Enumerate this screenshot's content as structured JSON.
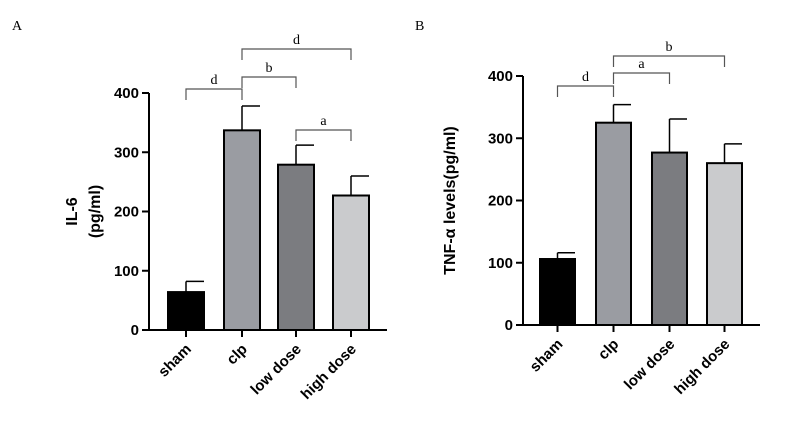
{
  "chart_data": [
    {
      "type": "bar",
      "panel_label": "A",
      "title": "",
      "ylabel_lines": [
        "IL-6",
        "(pg/ml)"
      ],
      "xlabel": "",
      "categories": [
        "sham",
        "clp",
        "low dose",
        "high dose"
      ],
      "values": [
        64,
        337,
        279,
        227
      ],
      "error_upper": [
        82,
        378,
        312,
        260
      ],
      "colors": [
        "#000000",
        "#9a9ca2",
        "#7b7c80",
        "#cacbcd"
      ],
      "ylim": [
        0,
        400
      ],
      "yticks": [
        "0",
        "100",
        "200",
        "300",
        "400"
      ],
      "grid": false,
      "significance": [
        {
          "from": 0,
          "to": 1,
          "label": "d",
          "level": 0
        },
        {
          "from": 1,
          "to": 2,
          "label": "b",
          "level": 1
        },
        {
          "from": 1,
          "to": 3,
          "label": "d",
          "level": 2
        },
        {
          "from": 2,
          "to": 3,
          "label": "a",
          "level": -1
        }
      ]
    },
    {
      "type": "bar",
      "panel_label": "B",
      "title": "",
      "ylabel_lines": [
        "TNF-α levels(pg/ml)"
      ],
      "xlabel": "",
      "categories": [
        "sham",
        "clp",
        "low dose",
        "high dose"
      ],
      "values": [
        106,
        325,
        277,
        260
      ],
      "error_upper": [
        116,
        354,
        331,
        291
      ],
      "colors": [
        "#000000",
        "#9a9ca2",
        "#7b7c80",
        "#cacbcd"
      ],
      "ylim": [
        0,
        400
      ],
      "yticks": [
        "0",
        "100",
        "200",
        "300",
        "400"
      ],
      "grid": false,
      "significance": [
        {
          "from": 0,
          "to": 1,
          "label": "d",
          "level": 0
        },
        {
          "from": 1,
          "to": 2,
          "label": "a",
          "level": 1
        },
        {
          "from": 1,
          "to": 3,
          "label": "b",
          "level": 2
        }
      ]
    }
  ]
}
